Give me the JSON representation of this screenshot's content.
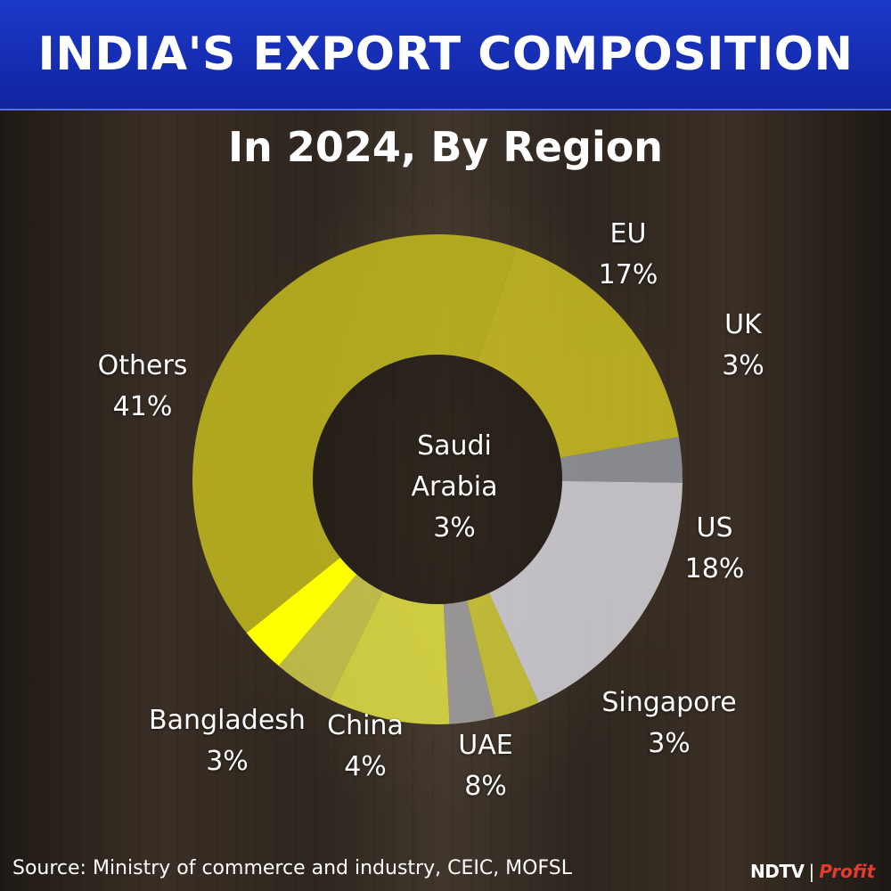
{
  "header": {
    "title": "INDIA'S EXPORT COMPOSITION",
    "subtitle": "In 2024, By Region"
  },
  "chart_data": {
    "type": "pie",
    "title": "INDIA'S EXPORT COMPOSITION",
    "subtitle": "In 2024, By Region",
    "donut": true,
    "start_angle_deg": -10,
    "slices": [
      {
        "name": "UK",
        "percent_label": "3%",
        "value": 3,
        "color": "#9a9da6"
      },
      {
        "name": "US",
        "percent_label": "18%",
        "value": 18,
        "color": "#dedee6"
      },
      {
        "name": "Singapore",
        "percent_label": "3%",
        "value": 3,
        "color": "#d8d43a"
      },
      {
        "name": "Saudi Arabia",
        "percent_label": "3%",
        "value": 3,
        "color": "#a9a9ab"
      },
      {
        "name": "UAE",
        "percent_label": "8%",
        "value": 8,
        "color": "#ecec48"
      },
      {
        "name": "China",
        "percent_label": "4%",
        "value": 4,
        "color": "#d9d650"
      },
      {
        "name": "Bangladesh",
        "percent_label": "3%",
        "value": 3,
        "color": "#ffff00"
      },
      {
        "name": "Others",
        "percent_label": "41%",
        "value": 41,
        "color": "#c9c21f"
      },
      {
        "name": "EU",
        "percent_label": "17%",
        "value": 17,
        "color": "#d2c722"
      }
    ]
  },
  "footer": {
    "source": "Source: Ministry of commerce and industry, CEIC, MOFSL",
    "brand_ndtv": "NDTV",
    "brand_separator": "|",
    "brand_profit": "Profit"
  }
}
